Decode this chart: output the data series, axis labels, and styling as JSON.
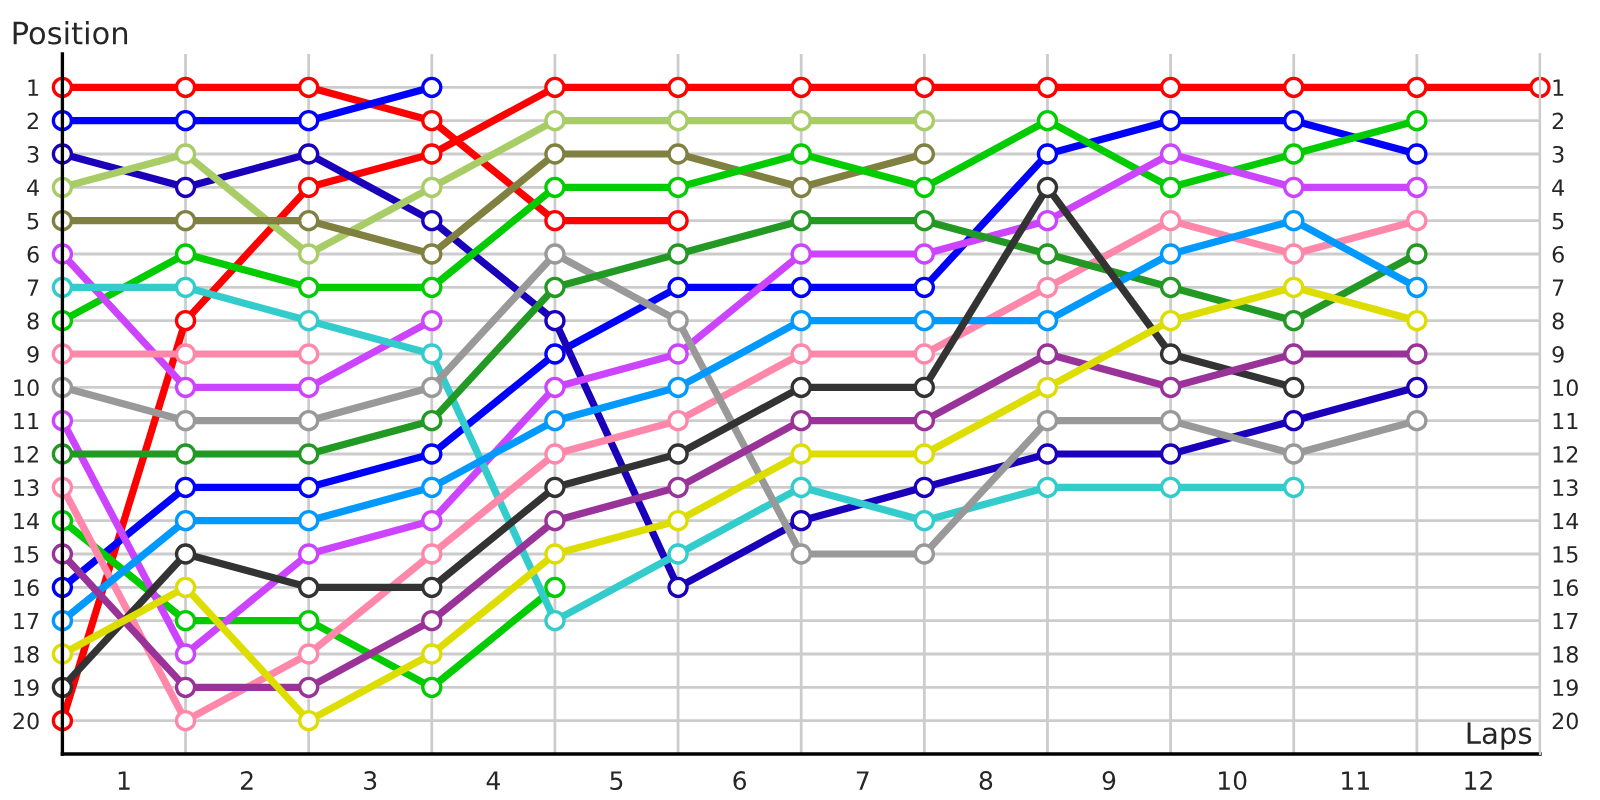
{
  "chart_data": {
    "type": "line",
    "xlabel": "Laps",
    "ylabel": "Position",
    "x": [
      0,
      1,
      2,
      3,
      4,
      5,
      6,
      7,
      8,
      9,
      10,
      11,
      12
    ],
    "series": [
      {
        "color": "#ff0000",
        "values": [
          1,
          1,
          1,
          2,
          5,
          5,
          null,
          null,
          null,
          null,
          null,
          null,
          null
        ]
      },
      {
        "color": "#ff0000",
        "values": [
          20,
          8,
          4,
          3,
          1,
          1,
          1,
          1,
          1,
          1,
          1,
          1,
          1
        ]
      },
      {
        "color": "#0000ff",
        "values": [
          2,
          2,
          2,
          1,
          null,
          null,
          null,
          null,
          null,
          null,
          null,
          null,
          null
        ]
      },
      {
        "color": "#0000ff",
        "values": [
          16,
          13,
          13,
          12,
          9,
          7,
          7,
          7,
          3,
          2,
          2,
          3,
          null
        ]
      },
      {
        "color": "#1a00bb",
        "values": [
          3,
          4,
          3,
          5,
          8,
          16,
          14,
          13,
          12,
          12,
          11,
          10,
          null
        ]
      },
      {
        "color": "#a8cc66",
        "values": [
          4,
          3,
          6,
          4,
          2,
          2,
          2,
          2,
          null,
          null,
          null,
          null,
          null
        ]
      },
      {
        "color": "#808040",
        "values": [
          5,
          5,
          5,
          6,
          3,
          3,
          4,
          3,
          null,
          null,
          null,
          null,
          null
        ]
      },
      {
        "color": "#00cc00",
        "values": [
          8,
          6,
          7,
          7,
          4,
          4,
          3,
          4,
          2,
          4,
          3,
          2,
          null
        ]
      },
      {
        "color": "#00cc00",
        "values": [
          14,
          17,
          17,
          19,
          16,
          null,
          null,
          null,
          null,
          null,
          null,
          null,
          null
        ]
      },
      {
        "color": "#cc44ff",
        "values": [
          6,
          10,
          10,
          8,
          null,
          null,
          null,
          null,
          null,
          null,
          null,
          null,
          null
        ]
      },
      {
        "color": "#cc44ff",
        "values": [
          11,
          18,
          15,
          14,
          10,
          9,
          6,
          6,
          5,
          3,
          4,
          4,
          null
        ]
      },
      {
        "color": "#33cccc",
        "values": [
          7,
          7,
          8,
          9,
          17,
          15,
          13,
          14,
          13,
          13,
          13,
          null,
          null
        ]
      },
      {
        "color": "#ff88aa",
        "values": [
          9,
          9,
          9,
          null,
          null,
          null,
          null,
          null,
          null,
          null,
          null,
          null,
          null
        ]
      },
      {
        "color": "#ff88aa",
        "values": [
          13,
          20,
          18,
          15,
          12,
          11,
          9,
          9,
          7,
          5,
          6,
          5,
          null
        ]
      },
      {
        "color": "#999999",
        "values": [
          10,
          11,
          11,
          10,
          6,
          8,
          15,
          15,
          11,
          11,
          12,
          11,
          null
        ]
      },
      {
        "color": "#229922",
        "values": [
          12,
          12,
          12,
          11,
          7,
          6,
          5,
          5,
          6,
          7,
          8,
          6,
          null
        ]
      },
      {
        "color": "#0099ff",
        "values": [
          17,
          14,
          14,
          13,
          11,
          10,
          8,
          8,
          8,
          6,
          5,
          7,
          null
        ]
      },
      {
        "color": "#333333",
        "values": [
          19,
          15,
          16,
          16,
          13,
          12,
          10,
          10,
          4,
          9,
          10,
          null,
          null
        ]
      },
      {
        "color": "#993399",
        "values": [
          15,
          19,
          19,
          17,
          14,
          13,
          11,
          11,
          9,
          10,
          9,
          9,
          null
        ]
      },
      {
        "color": "#dddd00",
        "values": [
          18,
          16,
          20,
          18,
          15,
          14,
          12,
          12,
          10,
          8,
          7,
          8,
          null
        ]
      }
    ],
    "xlim": [
      0,
      12
    ],
    "xticks": [
      {
        "value": 0,
        "label": null
      },
      {
        "value": 1,
        "label": null
      },
      {
        "value": 2,
        "label": null
      },
      {
        "value": 3,
        "label": null
      },
      {
        "value": 4,
        "label": null
      },
      {
        "value": 5,
        "label": null
      },
      {
        "value": 6,
        "label": null
      },
      {
        "value": 7,
        "label": null
      },
      {
        "value": 8,
        "label": null
      },
      {
        "value": 9,
        "label": null
      },
      {
        "value": 10,
        "label": null
      },
      {
        "value": 11,
        "label": null
      },
      {
        "value": 12,
        "label": null
      },
      {
        "value": 0.5,
        "label": "1"
      },
      {
        "value": 1.5,
        "label": "2"
      },
      {
        "value": 2.5,
        "label": "3"
      },
      {
        "value": 3.5,
        "label": "4"
      },
      {
        "value": 4.5,
        "label": "5"
      },
      {
        "value": 5.5,
        "label": "6"
      },
      {
        "value": 6.5,
        "label": "7"
      },
      {
        "value": 7.5,
        "label": "8"
      },
      {
        "value": 8.5,
        "label": "9"
      },
      {
        "value": 9.5,
        "label": "10"
      },
      {
        "value": 10.5,
        "label": "11"
      },
      {
        "value": 11.5,
        "label": "12"
      }
    ],
    "ylim": [
      21,
      0
    ],
    "yticks": [
      1,
      2,
      3,
      4,
      5,
      6,
      7,
      8,
      9,
      10,
      11,
      12,
      13,
      14,
      15,
      16,
      17,
      18,
      19,
      20
    ],
    "y2lim": [
      21,
      0
    ],
    "y2ticks": [
      1,
      2,
      3,
      4,
      5,
      6,
      7,
      8,
      9,
      10,
      11,
      12,
      13,
      14,
      15,
      16,
      17,
      18,
      19,
      20
    ],
    "grid": true,
    "marker": "circle",
    "line_style": "solid",
    "legend": false
  }
}
